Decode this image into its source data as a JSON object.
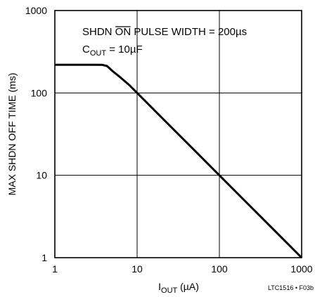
{
  "chart_data": {
    "type": "line",
    "x_scale": "log",
    "y_scale": "log",
    "xlim": [
      1,
      1000
    ],
    "ylim": [
      1,
      1000
    ],
    "grid": true,
    "xlabel": {
      "main": "I",
      "sub": "OUT",
      "unit": " (µA)"
    },
    "ylabel": "MAX SHDN OFF TIME (ms)",
    "x_ticks": [
      1,
      10,
      100,
      1000
    ],
    "x_tick_labels": [
      "1",
      "10",
      "100",
      "1000"
    ],
    "y_ticks": [
      1,
      10,
      100,
      1000
    ],
    "y_tick_labels": [
      "1",
      "10",
      "100",
      "1000"
    ],
    "annotation": {
      "line1": {
        "pre": "SHDN ",
        "overline": "ON",
        "post": " PULSE WIDTH = 200µs"
      },
      "line2": {
        "main": "C",
        "sub": "OUT",
        "post": " = 10µF"
      }
    },
    "series": [
      {
        "x": [
          1,
          2,
          3,
          3.8,
          4.3,
          4.6,
          5,
          6,
          8,
          10,
          20,
          50,
          100,
          200,
          500,
          1000
        ],
        "y": [
          220,
          220,
          220,
          219,
          212,
          200,
          185,
          160,
          125,
          100,
          50,
          20,
          10,
          5,
          2,
          1
        ]
      }
    ]
  },
  "figure_ref": "LTC1516 • F03b"
}
